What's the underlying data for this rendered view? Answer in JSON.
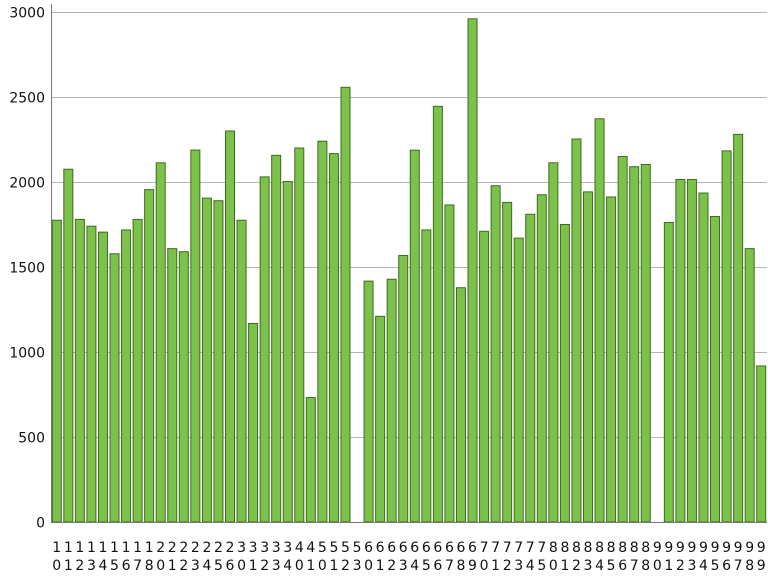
{
  "chart_data": {
    "type": "bar",
    "categories": [
      "10",
      "11",
      "12",
      "13",
      "14",
      "15",
      "16",
      "17",
      "18",
      "20",
      "21",
      "22",
      "23",
      "24",
      "25",
      "26",
      "30",
      "31",
      "32",
      "33",
      "34",
      "40",
      "41",
      "50",
      "51",
      "52",
      "53",
      "60",
      "61",
      "62",
      "63",
      "64",
      "65",
      "66",
      "67",
      "68",
      "69",
      "70",
      "71",
      "72",
      "73",
      "74",
      "75",
      "80",
      "81",
      "82",
      "83",
      "84",
      "85",
      "86",
      "87",
      "88",
      "90",
      "91",
      "92",
      "93",
      "94",
      "95",
      "96",
      "97",
      "98",
      "99"
    ],
    "values": [
      1775,
      2075,
      1780,
      1740,
      1705,
      1578,
      1718,
      1780,
      1955,
      2113,
      1608,
      1590,
      2188,
      1905,
      1890,
      2300,
      1775,
      1168,
      2030,
      2157,
      2003,
      2200,
      732,
      2240,
      2167,
      2557,
      null,
      1417,
      1210,
      1428,
      1568,
      2187,
      1718,
      2445,
      1865,
      1378,
      2960,
      1710,
      1978,
      1880,
      1670,
      1810,
      1925,
      2113,
      1750,
      2253,
      1942,
      2372,
      1912,
      2150,
      2090,
      2103,
      null,
      1762,
      2015,
      2015,
      1935,
      1797,
      2183,
      2280,
      1608,
      918
    ],
    "ylim": [
      0,
      3000
    ],
    "yticks": [
      0,
      500,
      1000,
      1500,
      2000,
      2500,
      3000
    ],
    "grid": true,
    "bar_color": "#7cc24a",
    "bar_edge_color": "#3d6b1f",
    "title": "",
    "xlabel": "",
    "ylabel": ""
  }
}
